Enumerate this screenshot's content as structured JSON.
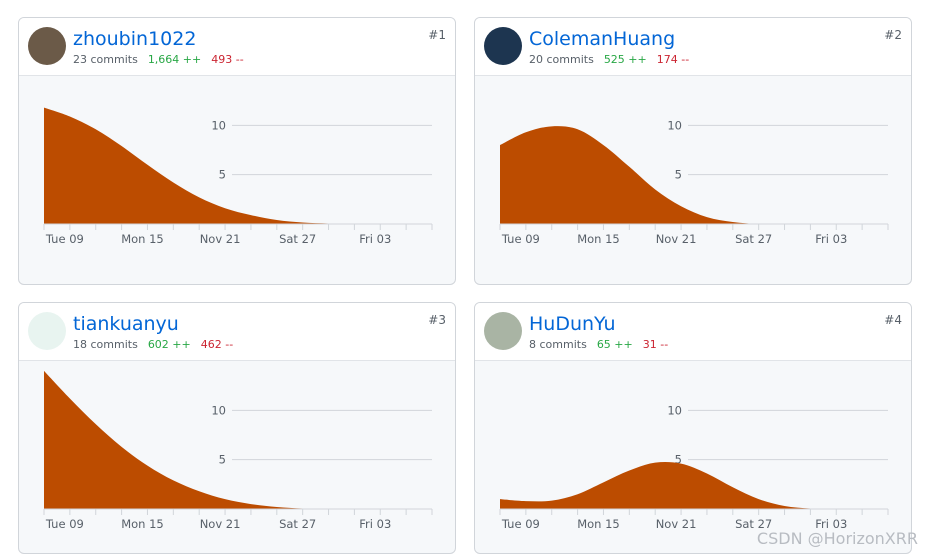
{
  "contributors": [
    {
      "rank": "#1",
      "name": "zhoubin1022",
      "commits": "23 commits",
      "additions": "1,664 ++",
      "deletions": "493 --",
      "chart_data": {
        "type": "area",
        "categories": [
          null,
          "Tue 09",
          null,
          null,
          "Mon 15",
          null,
          null,
          "Nov 21",
          null,
          null,
          "Sat 27",
          null,
          null,
          "Fri 03",
          null,
          null
        ],
        "values": [
          11.8,
          10.9,
          9.6,
          7.9,
          6.0,
          4.2,
          2.7,
          1.6,
          0.9,
          0.4,
          0.15,
          0.05,
          0,
          0,
          0,
          0
        ],
        "color": "#bc4c00",
        "ylim": [
          0,
          15
        ],
        "yticks": [
          5,
          10
        ]
      }
    },
    {
      "rank": "#2",
      "name": "ColemanHuang",
      "commits": "20 commits",
      "additions": "525 ++",
      "deletions": "174 --",
      "chart_data": {
        "type": "area",
        "categories": [
          null,
          "Tue 09",
          null,
          null,
          "Mon 15",
          null,
          null,
          "Nov 21",
          null,
          null,
          "Sat 27",
          null,
          null,
          "Fri 03",
          null,
          null
        ],
        "values": [
          8.0,
          9.3,
          9.9,
          9.6,
          8.0,
          5.8,
          3.5,
          1.8,
          0.7,
          0.2,
          0,
          0,
          0,
          0,
          0,
          0
        ],
        "color": "#bc4c00",
        "ylim": [
          0,
          15
        ],
        "yticks": [
          5,
          10
        ]
      }
    },
    {
      "rank": "#3",
      "name": "tiankuanyu",
      "commits": "18 commits",
      "additions": "602 ++",
      "deletions": "462 --",
      "chart_data": {
        "type": "area",
        "categories": [
          null,
          "Tue 09",
          null,
          null,
          "Mon 15",
          null,
          null,
          "Nov 21",
          null,
          null,
          "Sat 27",
          null,
          null,
          "Fri 03",
          null,
          null
        ],
        "values": [
          14,
          11.2,
          8.6,
          6.3,
          4.4,
          2.9,
          1.8,
          1.0,
          0.5,
          0.2,
          0.05,
          0,
          0,
          0,
          0,
          0
        ],
        "color": "#bc4c00",
        "ylim": [
          0,
          15
        ],
        "yticks": [
          5,
          10
        ]
      }
    },
    {
      "rank": "#4",
      "name": "HuDunYu",
      "commits": "8 commits",
      "additions": "65 ++",
      "deletions": "31 --",
      "chart_data": {
        "type": "area",
        "categories": [
          null,
          "Tue 09",
          null,
          null,
          "Mon 15",
          null,
          null,
          "Nov 21",
          null,
          null,
          "Sat 27",
          null,
          null,
          "Fri 03",
          null,
          null
        ],
        "values": [
          1.0,
          0.8,
          0.85,
          1.5,
          2.7,
          3.9,
          4.7,
          4.6,
          3.6,
          2.2,
          1.0,
          0.3,
          0.05,
          0,
          0,
          0
        ],
        "color": "#bc4c00",
        "ylim": [
          0,
          15
        ],
        "yticks": [
          5,
          10
        ]
      }
    }
  ],
  "watermark": "CSDN @HorizonXRR"
}
